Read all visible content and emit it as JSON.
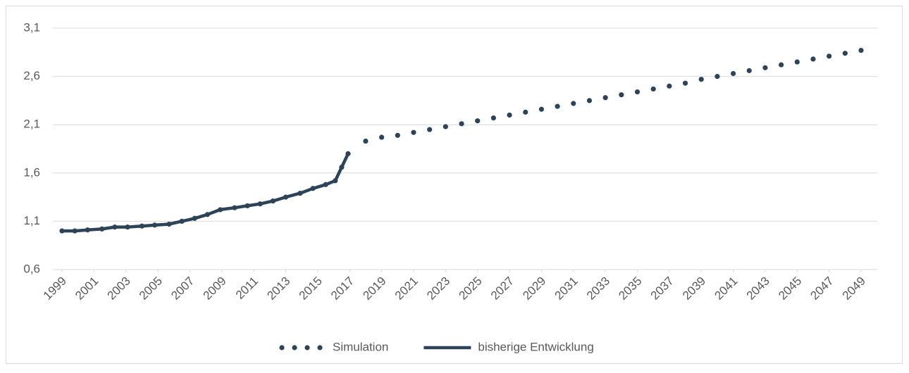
{
  "chart_data": {
    "type": "line",
    "ylim": [
      0.6,
      3.1
    ],
    "yticks": [
      {
        "value": 0.6,
        "label": "0,6"
      },
      {
        "value": 1.1,
        "label": "1,1"
      },
      {
        "value": 1.6,
        "label": "1,6"
      },
      {
        "value": 2.1,
        "label": "2,1"
      },
      {
        "value": 2.6,
        "label": "2,6"
      },
      {
        "value": 3.1,
        "label": "3,1"
      }
    ],
    "xlim": [
      1999,
      2049
    ],
    "xticks": [
      1999,
      2001,
      2003,
      2005,
      2007,
      2009,
      2011,
      2013,
      2015,
      2017,
      2019,
      2021,
      2023,
      2025,
      2027,
      2029,
      2031,
      2033,
      2035,
      2037,
      2039,
      2041,
      2043,
      2045,
      2047,
      2049
    ],
    "grid": true,
    "legend": "bottom",
    "series": [
      {
        "name": "Simulation",
        "color": "#2d4358",
        "style": "dotted",
        "x": [
          1999.0,
          1999.8,
          2000.6,
          2001.5,
          2002.3,
          2003.1,
          2004.0,
          2004.8,
          2005.7,
          2006.5,
          2007.3,
          2008.1,
          2008.9,
          2009.8,
          2010.6,
          2011.4,
          2012.2,
          2013.0,
          2013.9,
          2014.7,
          2015.5,
          2016.1,
          2016.5,
          2016.9,
          2018,
          2019,
          2020,
          2021,
          2022,
          2023,
          2024,
          2025,
          2026,
          2027,
          2028,
          2029,
          2030,
          2031,
          2032,
          2033,
          2034,
          2035,
          2036,
          2037,
          2038,
          2039,
          2040,
          2041,
          2042,
          2043,
          2044,
          2045,
          2046,
          2047,
          2048,
          2049
        ],
        "values": [
          1.0,
          1.0,
          1.01,
          1.02,
          1.04,
          1.04,
          1.05,
          1.06,
          1.07,
          1.1,
          1.13,
          1.17,
          1.22,
          1.24,
          1.26,
          1.28,
          1.31,
          1.35,
          1.39,
          1.44,
          1.48,
          1.52,
          1.66,
          1.8,
          1.93,
          1.97,
          1.99,
          2.02,
          2.05,
          2.08,
          2.11,
          2.14,
          2.17,
          2.2,
          2.23,
          2.26,
          2.29,
          2.32,
          2.35,
          2.38,
          2.41,
          2.44,
          2.47,
          2.5,
          2.53,
          2.57,
          2.6,
          2.63,
          2.66,
          2.69,
          2.72,
          2.75,
          2.78,
          2.81,
          2.84,
          2.87
        ]
      },
      {
        "name": "bisherige Entwicklung",
        "color": "#2d4358",
        "style": "solid",
        "x": [
          1999.0,
          1999.8,
          2000.6,
          2001.5,
          2002.3,
          2003.1,
          2004.0,
          2004.8,
          2005.7,
          2006.5,
          2007.3,
          2008.1,
          2008.9,
          2009.8,
          2010.6,
          2011.4,
          2012.2,
          2013.0,
          2013.9,
          2014.7,
          2015.5,
          2016.1,
          2016.5,
          2016.9
        ],
        "values": [
          1.0,
          1.0,
          1.01,
          1.02,
          1.04,
          1.04,
          1.05,
          1.06,
          1.07,
          1.1,
          1.13,
          1.17,
          1.22,
          1.24,
          1.26,
          1.28,
          1.31,
          1.35,
          1.39,
          1.44,
          1.48,
          1.52,
          1.66,
          1.8
        ]
      }
    ]
  }
}
